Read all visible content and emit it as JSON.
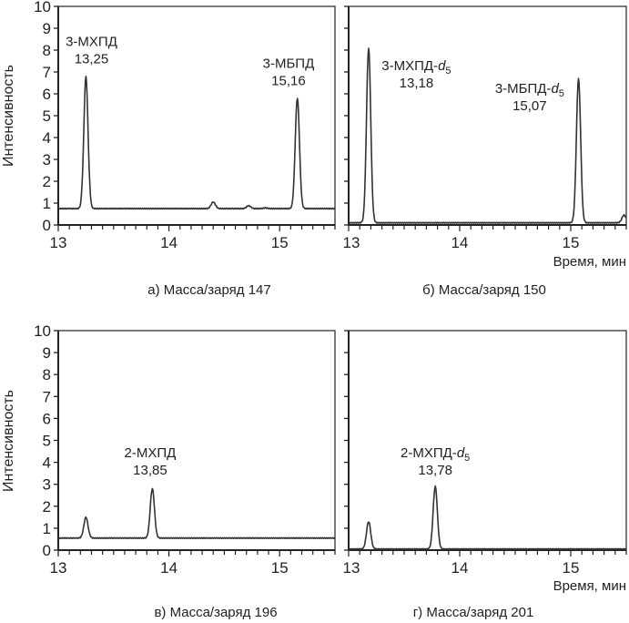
{
  "chart_data": [
    {
      "type": "line",
      "caption": "а) Масса/заряд 147",
      "ylabel": "Интенсивность",
      "xlabel": "",
      "xlim": [
        13,
        15.5
      ],
      "ylim": [
        0,
        10
      ],
      "xticks": [
        "13",
        "14",
        "15"
      ],
      "yticks": [
        "0",
        "1",
        "2",
        "3",
        "4",
        "5",
        "6",
        "7",
        "8",
        "9",
        "10"
      ],
      "baseline": 0.75,
      "peaks": [
        {
          "rt": 13.25,
          "height": 6.8
        },
        {
          "rt": 14.4,
          "height": 1.05
        },
        {
          "rt": 14.72,
          "height": 0.88
        },
        {
          "rt": 14.87,
          "height": 0.78
        },
        {
          "rt": 15.16,
          "height": 5.8
        }
      ],
      "annotations": [
        {
          "name": "3-МХПД",
          "italic": "",
          "sub": "",
          "rt": "13,25",
          "x": 13.3,
          "y": 8.4
        },
        {
          "name": "3-МБПД",
          "italic": "",
          "sub": "",
          "rt": "15,16",
          "x": 15.08,
          "y": 7.4
        }
      ]
    },
    {
      "type": "line",
      "caption": "б) Масса/заряд 150",
      "ylabel": "",
      "xlabel": "Время, мин",
      "xlim": [
        13,
        15.5
      ],
      "ylim": [
        0,
        10
      ],
      "xticks": [
        "13",
        "14",
        "15"
      ],
      "yticks": [],
      "baseline": 0.1,
      "peaks": [
        {
          "rt": 13.18,
          "height": 8.1
        },
        {
          "rt": 15.07,
          "height": 6.7
        },
        {
          "rt": 15.48,
          "height": 0.45
        }
      ],
      "annotations": [
        {
          "name": "3-МХПД-",
          "italic": "d",
          "sub": "5",
          "rt": "13,18",
          "x": 13.61,
          "y": 7.3
        },
        {
          "name": "3-МБПД-",
          "italic": "d",
          "sub": "5",
          "rt": "15,07",
          "x": 14.63,
          "y": 6.25
        }
      ]
    },
    {
      "type": "line",
      "caption": "в) Масса/заряд 196",
      "ylabel": "Интенсивность",
      "xlabel": "",
      "xlim": [
        13,
        15.5
      ],
      "ylim": [
        0,
        10
      ],
      "xticks": [
        "13",
        "14",
        "15"
      ],
      "yticks": [
        "0",
        "1",
        "2",
        "3",
        "4",
        "5",
        "6",
        "7",
        "8",
        "9",
        "10"
      ],
      "baseline": 0.55,
      "peaks": [
        {
          "rt": 13.25,
          "height": 1.5
        },
        {
          "rt": 13.85,
          "height": 2.8
        }
      ],
      "annotations": [
        {
          "name": "2-МХПД",
          "italic": "",
          "sub": "",
          "rt": "13,85",
          "x": 13.83,
          "y": 4.45
        }
      ]
    },
    {
      "type": "line",
      "caption": "г) Масса/заряд 201",
      "ylabel": "",
      "xlabel": "Время, мин",
      "xlim": [
        13,
        15.5
      ],
      "ylim": [
        0,
        10
      ],
      "xticks": [
        "13",
        "14",
        "15"
      ],
      "yticks": [],
      "baseline": 0.05,
      "peaks": [
        {
          "rt": 13.18,
          "height": 1.3
        },
        {
          "rt": 13.78,
          "height": 2.9
        }
      ],
      "annotations": [
        {
          "name": "2-МХПД-",
          "italic": "d",
          "sub": "5",
          "rt": "13,78",
          "x": 13.78,
          "y": 4.45
        }
      ]
    }
  ]
}
